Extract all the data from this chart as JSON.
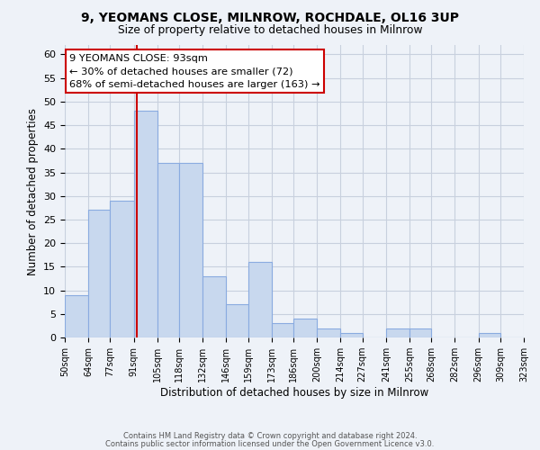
{
  "title1": "9, YEOMANS CLOSE, MILNROW, ROCHDALE, OL16 3UP",
  "title2": "Size of property relative to detached houses in Milnrow",
  "xlabel": "Distribution of detached houses by size in Milnrow",
  "ylabel": "Number of detached properties",
  "bins": [
    50,
    64,
    77,
    91,
    105,
    118,
    132,
    146,
    159,
    173,
    186,
    200,
    214,
    227,
    241,
    255,
    268,
    282,
    296,
    309,
    323
  ],
  "counts": [
    9,
    27,
    29,
    48,
    37,
    37,
    13,
    7,
    16,
    3,
    4,
    2,
    1,
    0,
    2,
    2,
    0,
    0,
    1,
    0
  ],
  "tick_labels": [
    "50sqm",
    "64sqm",
    "77sqm",
    "91sqm",
    "105sqm",
    "118sqm",
    "132sqm",
    "146sqm",
    "159sqm",
    "173sqm",
    "186sqm",
    "200sqm",
    "214sqm",
    "227sqm",
    "241sqm",
    "255sqm",
    "268sqm",
    "282sqm",
    "296sqm",
    "309sqm",
    "323sqm"
  ],
  "bar_color": "#c8d8ee",
  "bar_edge_color": "#8aabe0",
  "grid_color": "#c8d0de",
  "vline_x": 93,
  "vline_color": "#cc0000",
  "annotation_line1": "9 YEOMANS CLOSE: 93sqm",
  "annotation_line2": "← 30% of detached houses are smaller (72)",
  "annotation_line3": "68% of semi-detached houses are larger (163) →",
  "ylim": [
    0,
    62
  ],
  "yticks": [
    0,
    5,
    10,
    15,
    20,
    25,
    30,
    35,
    40,
    45,
    50,
    55,
    60
  ],
  "footer1": "Contains HM Land Registry data © Crown copyright and database right 2024.",
  "footer2": "Contains public sector information licensed under the Open Government Licence v3.0.",
  "bg_color": "#eef2f8"
}
